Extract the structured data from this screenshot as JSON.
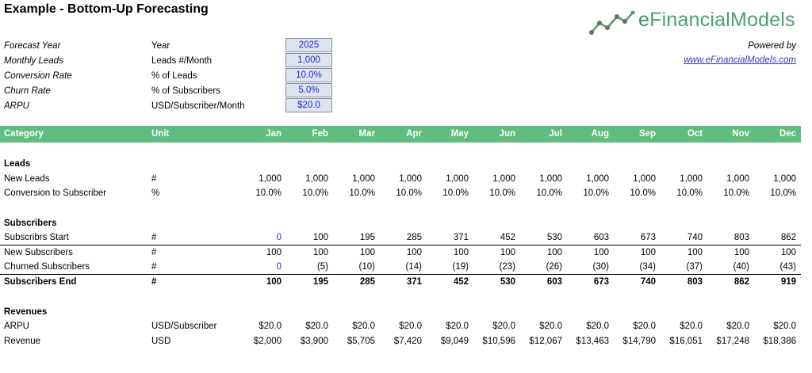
{
  "title": "Example - Bottom-Up Forecasting",
  "logo": {
    "text_e": "e",
    "text_rest": "FinancialModels"
  },
  "powered_by": "Powered by",
  "website": "www.eFinancialModels.com",
  "assumptions": [
    {
      "label": "Forecast Year",
      "unit": "Year",
      "value": "2025"
    },
    {
      "label": "Monthly Leads",
      "unit": "Leads #/Month",
      "value": "1,000"
    },
    {
      "label": "Conversion Rate",
      "unit": "% of Leads",
      "value": "10.0%"
    },
    {
      "label": "Churn Rate",
      "unit": "% of Subscribers",
      "value": "5.0%"
    },
    {
      "label": "ARPU",
      "unit": "USD/Subscriber/Month",
      "value": "$20.0"
    }
  ],
  "header": {
    "category": "Category",
    "unit": "Unit",
    "months": [
      "Jan",
      "Feb",
      "Mar",
      "Apr",
      "May",
      "Jun",
      "Jul",
      "Aug",
      "Sep",
      "Oct",
      "Nov",
      "Dec"
    ]
  },
  "sections": {
    "leads": "Leads",
    "subscribers": "Subscribers",
    "revenues": "Revenues"
  },
  "rows": {
    "new_leads": {
      "name": "New Leads",
      "unit": "#",
      "values": [
        "1,000",
        "1,000",
        "1,000",
        "1,000",
        "1,000",
        "1,000",
        "1,000",
        "1,000",
        "1,000",
        "1,000",
        "1,000",
        "1,000"
      ]
    },
    "conversion": {
      "name": "Conversion to Subscriber",
      "unit": "%",
      "values": [
        "10.0%",
        "10.0%",
        "10.0%",
        "10.0%",
        "10.0%",
        "10.0%",
        "10.0%",
        "10.0%",
        "10.0%",
        "10.0%",
        "10.0%",
        "10.0%"
      ]
    },
    "subs_start": {
      "name": "Subscribrs Start",
      "unit": "#",
      "values": [
        "0",
        "100",
        "195",
        "285",
        "371",
        "452",
        "530",
        "603",
        "673",
        "740",
        "803",
        "862"
      ]
    },
    "new_subs": {
      "name": "New Subscribers",
      "unit": "#",
      "values": [
        "100",
        "100",
        "100",
        "100",
        "100",
        "100",
        "100",
        "100",
        "100",
        "100",
        "100",
        "100"
      ]
    },
    "churned": {
      "name": "Churned Subscribers",
      "unit": "#",
      "values": [
        "0",
        "(5)",
        "(10)",
        "(14)",
        "(19)",
        "(23)",
        "(26)",
        "(30)",
        "(34)",
        "(37)",
        "(40)",
        "(43)"
      ]
    },
    "subs_end": {
      "name": "Subscribers End",
      "unit": "#",
      "values": [
        "100",
        "195",
        "285",
        "371",
        "452",
        "530",
        "603",
        "673",
        "740",
        "803",
        "862",
        "919"
      ]
    },
    "arpu": {
      "name": "ARPU",
      "unit": "USD/Subscriber",
      "values": [
        "$20.0",
        "$20.0",
        "$20.0",
        "$20.0",
        "$20.0",
        "$20.0",
        "$20.0",
        "$20.0",
        "$20.0",
        "$20.0",
        "$20.0",
        "$20.0"
      ]
    },
    "revenue": {
      "name": "Revenue",
      "unit": "USD",
      "values": [
        "$2,000",
        "$3,900",
        "$5,705",
        "$7,420",
        "$9,049",
        "$10,596",
        "$12,067",
        "$13,463",
        "$14,790",
        "$16,051",
        "$17,248",
        "$18,386"
      ]
    }
  },
  "colors": {
    "header_green": "#60bd7d",
    "input_blue": "#1f2bd6",
    "input_bg": "#dde4ef",
    "link_blue": "#2a35c8"
  }
}
